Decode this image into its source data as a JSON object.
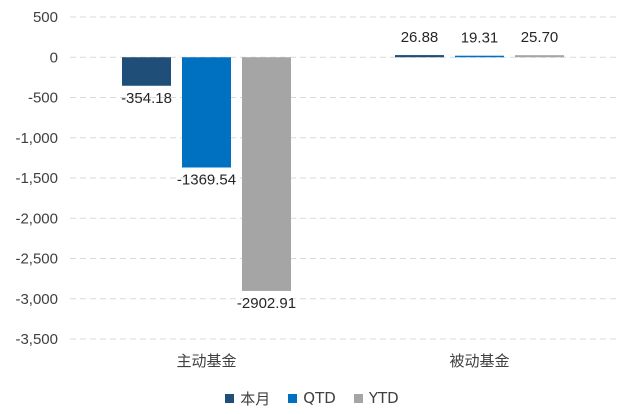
{
  "chart_data": {
    "type": "bar",
    "categories": [
      "主动基金",
      "被动基金"
    ],
    "series": [
      {
        "name": "本月",
        "values": [
          -354.18,
          26.88
        ],
        "labels": [
          "-354.18",
          "26.88"
        ],
        "color": "#1f4e79"
      },
      {
        "name": "QTD",
        "values": [
          -1369.54,
          19.31
        ],
        "labels": [
          "-1369.54",
          "19.31"
        ],
        "color": "#0070c0"
      },
      {
        "name": "YTD",
        "values": [
          -2902.91,
          25.7
        ],
        "labels": [
          "-2902.91",
          "25.70"
        ],
        "color": "#a5a5a5"
      }
    ],
    "yticks": [
      500,
      0,
      -500,
      -1000,
      -1500,
      -2000,
      -2500,
      -3000,
      -3500
    ],
    "ytick_labels": [
      "500",
      "0",
      "-500",
      "-1,000",
      "-1,500",
      "-2,000",
      "-2,500",
      "-3,000",
      "-3,500"
    ],
    "ylim": [
      -3500,
      500
    ],
    "grid": true,
    "legend_position": "bottom"
  }
}
